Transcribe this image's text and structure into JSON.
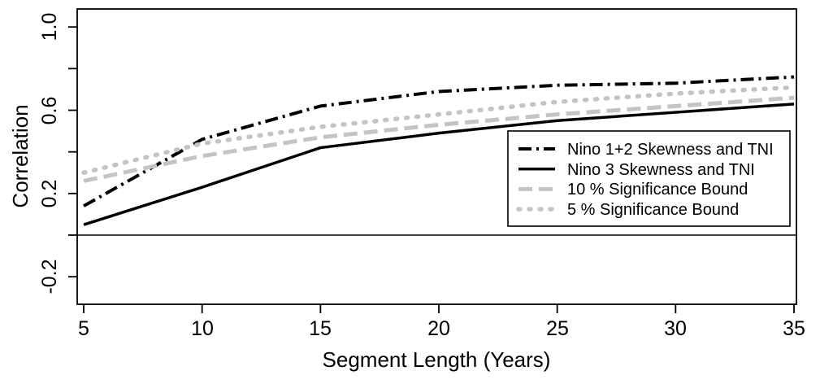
{
  "chart_data": {
    "type": "line",
    "title": "",
    "xlabel": "Segment Length (Years)",
    "ylabel": "Correlation",
    "x": [
      5,
      10,
      15,
      20,
      25,
      30,
      35
    ],
    "xlim": [
      4.7,
      35.1
    ],
    "ylim": [
      -0.33,
      1.09
    ],
    "x_tick_values": [
      5,
      10,
      15,
      20,
      25,
      30,
      35
    ],
    "x_tick_labels": [
      "5",
      "10",
      "15",
      "20",
      "25",
      "30",
      "35"
    ],
    "y_tick_values": [
      1.0,
      0.8,
      0.6,
      0.4,
      0.2,
      0.0,
      -0.2
    ],
    "y_tick_label_values": [
      1.0,
      0.6,
      0.2,
      -0.2
    ],
    "y_tick_labels": [
      "1.0",
      "0.6",
      "0.2",
      "-0.2"
    ],
    "reference_line_y": 0,
    "grid": false,
    "legend_position": "inside-right",
    "colors": {
      "line_black": "#000000",
      "line_gray": "#c4c4c4",
      "background": "#ffffff"
    },
    "series": [
      {
        "name": "Nino 1+2 Skewness and TNI",
        "color": "#000000",
        "style": "dashdot",
        "values": [
          0.14,
          0.46,
          0.62,
          0.69,
          0.72,
          0.73,
          0.76
        ]
      },
      {
        "name": "Nino 3 Skewness and TNI",
        "color": "#000000",
        "style": "solid",
        "values": [
          0.05,
          0.23,
          0.42,
          0.49,
          0.55,
          0.59,
          0.63
        ]
      },
      {
        "name": "10 % Significance Bound",
        "color": "#c4c4c4",
        "style": "dashed",
        "values": [
          0.26,
          0.38,
          0.47,
          0.53,
          0.58,
          0.62,
          0.66
        ]
      },
      {
        "name": "5 % Significance Bound",
        "color": "#c4c4c4",
        "style": "dotted",
        "values": [
          0.3,
          0.44,
          0.52,
          0.58,
          0.64,
          0.68,
          0.71
        ]
      }
    ]
  }
}
